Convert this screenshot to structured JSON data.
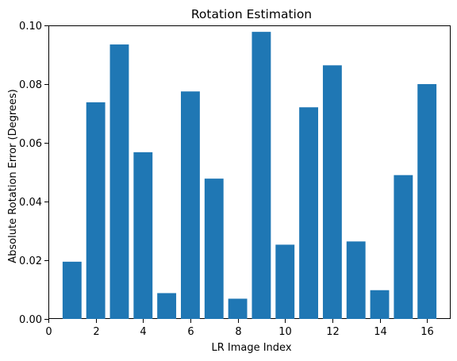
{
  "chart_data": {
    "type": "bar",
    "title": "Rotation Estimation",
    "xlabel": "LR Image Index",
    "ylabel": "Absolute Rotation Error (Degrees)",
    "xlim": [
      0,
      17
    ],
    "ylim": [
      0,
      0.1
    ],
    "xticks": [
      0,
      2,
      4,
      6,
      8,
      10,
      12,
      14,
      16
    ],
    "yticks": [
      0.0,
      0.02,
      0.04,
      0.06,
      0.08,
      0.1
    ],
    "ytick_labels": [
      "0.00",
      "0.02",
      "0.04",
      "0.06",
      "0.08",
      "0.10"
    ],
    "categories": [
      1,
      2,
      3,
      4,
      5,
      6,
      7,
      8,
      9,
      10,
      11,
      12,
      13,
      14,
      15,
      16
    ],
    "values": [
      0.0195,
      0.0738,
      0.0935,
      0.0568,
      0.0088,
      0.0775,
      0.0478,
      0.0069,
      0.0978,
      0.0253,
      0.0721,
      0.0864,
      0.0264,
      0.0098,
      0.049,
      0.08
    ],
    "bar_color": "#1f77b4",
    "grid": false
  }
}
